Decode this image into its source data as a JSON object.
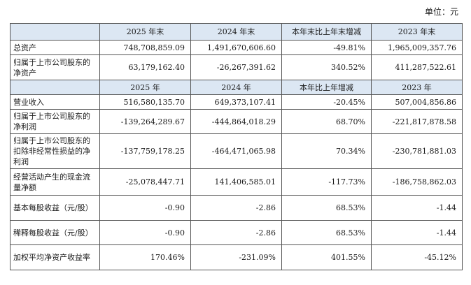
{
  "unit": "单位：元",
  "header1": [
    "2025 年末",
    "2024 年末",
    "本年末比上年末增减",
    "2023 年末"
  ],
  "header2": [
    "2025 年",
    "2024 年",
    "本年比上年增减",
    "2023 年"
  ],
  "rows": [
    {
      "label": "总资产",
      "values": [
        "748,708,859.09",
        "1,491,670,606.60",
        "-49.81%",
        "1,965,009,357.76"
      ]
    },
    {
      "label": "归属于上市公司股东的净资产",
      "values": [
        "63,179,162.40",
        "-26,267,391.62",
        "340.52%",
        "411,287,522.61"
      ]
    },
    {
      "label": "营业收入",
      "values": [
        "516,580,135.70",
        "649,373,107.41",
        "-20.45%",
        "507,004,856.86"
      ]
    },
    {
      "label": "归属于上市公司股东的净利润",
      "values": [
        "-139,264,289.67",
        "-444,864,018.29",
        "68.70%",
        "-221,817,878.58"
      ]
    },
    {
      "label": "归属于上市公司股东的扣除非经常性损益的净利润",
      "values": [
        "-137,759,178.25",
        "-464,471,065.98",
        "70.34%",
        "-230,781,881.03"
      ]
    },
    {
      "label": "经营活动产生的现金流量净额",
      "values": [
        "-25,078,447.71",
        "141,406,585.01",
        "-117.73%",
        "-186,758,862.03"
      ]
    },
    {
      "label": "基本每股收益（元/股）",
      "values": [
        "-0.90",
        "-2.86",
        "68.53%",
        "-1.44"
      ]
    },
    {
      "label": "稀释每股收益（元/股）",
      "values": [
        "-0.90",
        "-2.86",
        "68.53%",
        "-1.44"
      ]
    },
    {
      "label": "加权平均净资产收益率",
      "values": [
        "170.46%",
        "-231.09%",
        "401.55%",
        "-45.12%"
      ]
    }
  ]
}
